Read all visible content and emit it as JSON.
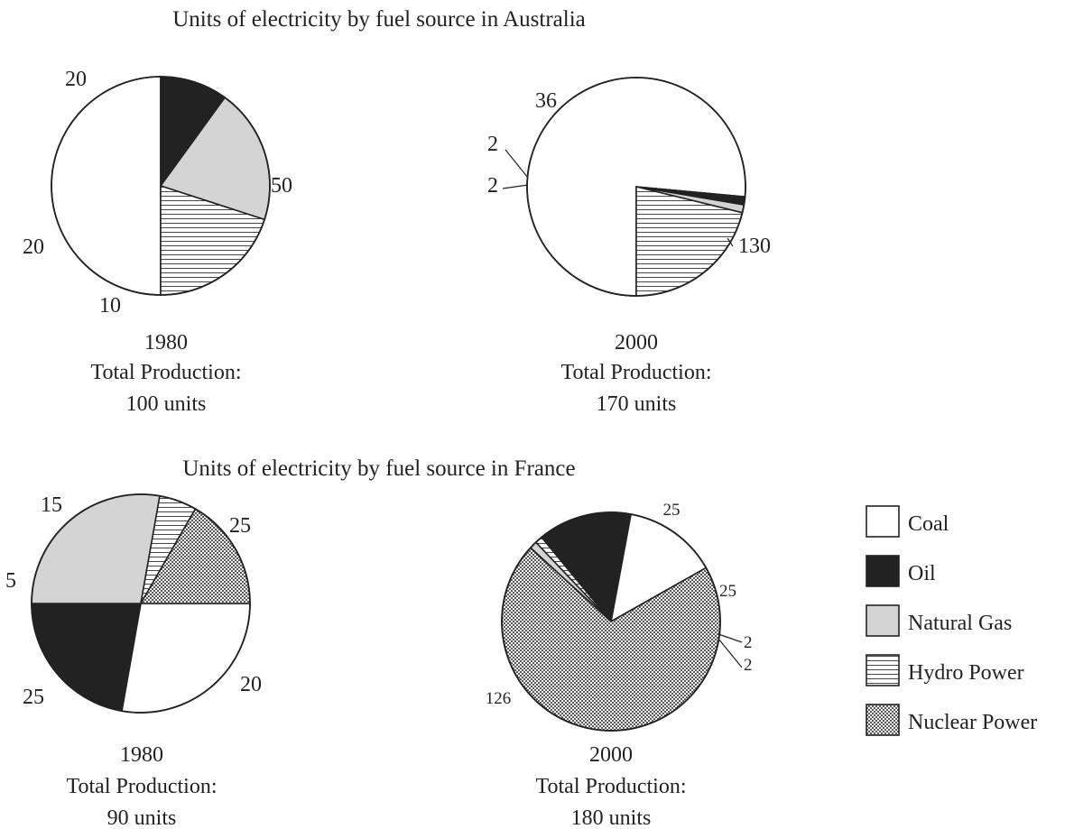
{
  "colors": {
    "outline": "#222222",
    "Coal": "#ffffff",
    "Oil": "#222222",
    "Natural Gas": "#d4d4d4",
    "Hydro Power": "hatch-horizontal",
    "Nuclear Power": "crosshatch"
  },
  "legend": {
    "position": "right",
    "items": [
      "Coal",
      "Oil",
      "Natural Gas",
      "Hydro Power",
      "Nuclear Power"
    ]
  },
  "chart_data": [
    {
      "type": "pie",
      "group_title": "Units of electricity by fuel source in Australia",
      "year": "1980",
      "caption_label": "Total Production:",
      "caption_total": "100 units",
      "slices": [
        {
          "name": "Coal",
          "value": 50,
          "label": "50"
        },
        {
          "name": "Oil",
          "value": 10,
          "label": "10"
        },
        {
          "name": "Natural Gas",
          "value": 20,
          "label": "20"
        },
        {
          "name": "Hydro Power",
          "value": 20,
          "label": "20"
        }
      ]
    },
    {
      "type": "pie",
      "year": "2000",
      "caption_label": "Total Production:",
      "caption_total": "170 units",
      "slices": [
        {
          "name": "Coal",
          "value": 130,
          "label": "130"
        },
        {
          "name": "Oil",
          "value": 2,
          "label": "2"
        },
        {
          "name": "Natural Gas",
          "value": 2,
          "label": "2"
        },
        {
          "name": "Hydro Power",
          "value": 36,
          "label": "36"
        }
      ]
    },
    {
      "type": "pie",
      "group_title": "Units of electricity by fuel source in France",
      "year": "1980",
      "caption_label": "Total Production:",
      "caption_total": "90 units",
      "slices": [
        {
          "name": "Coal",
          "value": 25,
          "label": "25"
        },
        {
          "name": "Oil",
          "value": 20,
          "label": "20"
        },
        {
          "name": "Natural Gas",
          "value": 25,
          "label": "25"
        },
        {
          "name": "Hydro Power",
          "value": 5,
          "label": "5"
        },
        {
          "name": "Nuclear Power",
          "value": 15,
          "label": "15"
        }
      ]
    },
    {
      "type": "pie",
      "year": "2000",
      "caption_label": "Total Production:",
      "caption_total": "180 units",
      "slices": [
        {
          "name": "Coal",
          "value": 25,
          "label": "25"
        },
        {
          "name": "Oil",
          "value": 25,
          "label": "25"
        },
        {
          "name": "Hydro Power",
          "value": 2,
          "label": "2"
        },
        {
          "name": "Natural Gas",
          "value": 2,
          "label": "2"
        },
        {
          "name": "Nuclear Power",
          "value": 126,
          "label": "126"
        }
      ]
    }
  ]
}
